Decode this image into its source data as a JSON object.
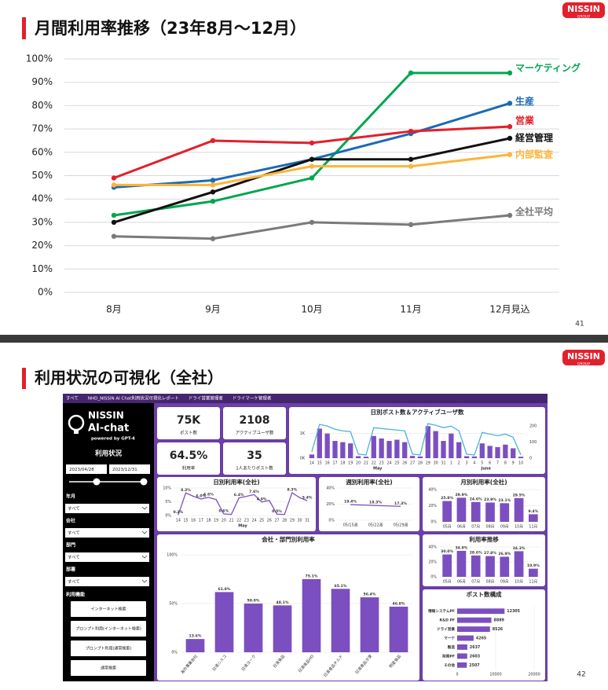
{
  "slide1": {
    "title": "月間利用率推移（23年8月～12月）",
    "logo": {
      "brand": "NISSIN",
      "sub": "GROUP"
    },
    "page": "41",
    "chart": {
      "type": "line",
      "categories": [
        "8月",
        "9月",
        "10月",
        "11月",
        "12月見込"
      ],
      "ylim": [
        0,
        100
      ],
      "yticks": [
        {
          "value": 0,
          "label": "0%"
        },
        {
          "value": 10,
          "label": "10%"
        },
        {
          "value": 20,
          "label": "20%"
        },
        {
          "value": 30,
          "label": "30%"
        },
        {
          "value": 40,
          "label": "40%"
        },
        {
          "value": 50,
          "label": "50%"
        },
        {
          "value": 60,
          "label": "60%"
        },
        {
          "value": 70,
          "label": "70%"
        },
        {
          "value": 80,
          "label": "80%"
        },
        {
          "value": 90,
          "label": "90%"
        },
        {
          "value": 100,
          "label": "100%"
        }
      ],
      "grid": true,
      "series": [
        {
          "name": "マーケティング",
          "color": "#00a650",
          "values": [
            33,
            39,
            49,
            94,
            94
          ]
        },
        {
          "name": "生産",
          "color": "#1b6ab4",
          "values": [
            45,
            48,
            57,
            68,
            81
          ]
        },
        {
          "name": "営業",
          "color": "#e2202b",
          "values": [
            49,
            65,
            64,
            69,
            71
          ]
        },
        {
          "name": "経営管理",
          "color": "#111111",
          "values": [
            30,
            43,
            57,
            57,
            66
          ]
        },
        {
          "name": "内部監査",
          "color": "#fbb53c",
          "values": [
            46,
            46,
            54,
            54,
            59
          ]
        },
        {
          "name": "全社平均",
          "color": "#7a7a7a",
          "values": [
            24,
            23,
            30,
            29,
            33
          ]
        }
      ]
    }
  },
  "slide2": {
    "title": "利用状況の可視化（全社）",
    "logo": {
      "brand": "NISSIN",
      "sub": "GROUP"
    },
    "page": "42",
    "dashboard": {
      "tabs": [
        "すべて",
        "NHD_NISSIN AI Chat利用状況可視化レポート",
        "ドライ営業管理者",
        "ドライマーケ管理者"
      ],
      "sidebar": {
        "brand": "NISSIN",
        "product": "AI-chat",
        "tagline": "powered by GPT-4",
        "heading": "利用状況",
        "date_from": "2023/04/28",
        "date_to": "2023/12/31",
        "filters": [
          {
            "label": "年月",
            "value": "すべて"
          },
          {
            "label": "会社",
            "value": "すべて"
          },
          {
            "label": "部門",
            "value": "すべて"
          },
          {
            "label": "部署",
            "value": "すべて"
          }
        ],
        "function_label": "利用機能",
        "buttons": [
          "インターネット検索",
          "プロンプト利用(インターネット検索)",
          "プロンプト利用(通常検索)",
          "通常検索"
        ]
      },
      "kpis": [
        {
          "value": "75K",
          "label": "ポスト数"
        },
        {
          "value": "2108",
          "label": "アクティブユーザ数"
        },
        {
          "value": "64.5%",
          "label": "利用率"
        },
        {
          "value": "35",
          "label": "1人あたりポスト数"
        }
      ],
      "charts": [
        {
          "type": "bar",
          "title": "日別ポスト数＆アクティブユーザ数",
          "categories": [
            "14",
            "15",
            "16",
            "17",
            "18",
            "19",
            "20",
            "21",
            "22",
            "23",
            "24",
            "25",
            "26",
            "27",
            "28",
            "29",
            "30",
            "31",
            "1",
            "2",
            "3",
            "4",
            "5",
            "6",
            "7",
            "8",
            "9",
            "10"
          ],
          "x_groups": [
            "May",
            "June"
          ],
          "ylim": [
            0,
            1500
          ],
          "yticks": [
            {
              "value": 0,
              "label": "0K"
            },
            {
              "value": 1000,
              "label": "1K"
            }
          ],
          "y2lim": [
            0,
            230
          ],
          "y2ticks": [
            0,
            100,
            200
          ],
          "series": [
            {
              "color": "#7b4fc0",
              "values": [
                150,
                1200,
                1000,
                700,
                650,
                600,
                80,
                60,
                900,
                800,
                700,
                750,
                650,
                90,
                70,
                1300,
                1100,
                700,
                1000,
                650,
                80,
                70,
                600,
                500,
                450,
                550,
                400,
                60
              ]
            },
            {
              "type": "line",
              "axis": "y2",
              "color": "#4bb4d8",
              "values": [
                40,
                210,
                200,
                180,
                170,
                165,
                25,
                20,
                190,
                185,
                180,
                175,
                170,
                25,
                20,
                215,
                205,
                190,
                200,
                170,
                25,
                20,
                160,
                150,
                140,
                150,
                130,
                20
              ]
            }
          ]
        },
        {
          "type": "line",
          "title": "日別利用率(全社)",
          "categories": [
            "14",
            "15",
            "16",
            "17",
            "18",
            "19",
            "20",
            "21",
            "22",
            "23",
            "24",
            "25",
            "26",
            "27",
            "28",
            "29",
            "30",
            "31"
          ],
          "x_groups": [
            "May"
          ],
          "ylim": [
            0,
            10
          ],
          "yticks": [
            {
              "value": 0,
              "label": "0%"
            },
            {
              "value": 5,
              "label": "5%"
            },
            {
              "value": 10,
              "label": "10%"
            }
          ],
          "color": "#7b4fc0",
          "values": [
            0.2,
            8.2,
            7.0,
            6.0,
            6.6,
            5.8,
            0.6,
            0.4,
            6.4,
            7.0,
            7.6,
            4.9,
            5.5,
            0.5,
            0.4,
            8.3,
            6.5,
            5.4
          ],
          "value_labels": [
            "0.2%",
            "8.2%",
            null,
            "6.0%",
            "6.6%",
            null,
            "0.6%",
            null,
            "6.4%",
            null,
            "7.6%",
            "4.9%",
            null,
            "0.5%",
            null,
            "8.3%",
            null,
            "5.4%"
          ]
        },
        {
          "type": "line",
          "title": "週別利用率(全社)",
          "categories": [
            "05/15週",
            "05/22週",
            "05/29週"
          ],
          "ylim": [
            0,
            40
          ],
          "yticks": [
            {
              "value": 0,
              "label": "0%"
            },
            {
              "value": 20,
              "label": "20%"
            },
            {
              "value": 40,
              "label": "40%"
            }
          ],
          "color": "#7b4fc0",
          "values": [
            19.4,
            18.3,
            17.3
          ],
          "value_labels": [
            "19.4%",
            "18.3%",
            "17.3%"
          ]
        },
        {
          "type": "bar",
          "title": "月別利用率(全社)",
          "categories": [
            "05月",
            "06月",
            "07月",
            "08月",
            "09月",
            "10月",
            "11月"
          ],
          "ylim": [
            0,
            40
          ],
          "yticks": [
            {
              "value": 0,
              "label": "0%"
            },
            {
              "value": 20,
              "label": "20%"
            },
            {
              "value": 40,
              "label": "40%"
            }
          ],
          "color": "#7b4fc0",
          "values": [
            25.8,
            29.9,
            24.6,
            23.9,
            23.1,
            29.5,
            9.4
          ],
          "value_labels": [
            "25.8%",
            "29.9%",
            "24.6%",
            "23.9%",
            "23.1%",
            "29.5%",
            "9.4%"
          ]
        },
        {
          "type": "bar",
          "title": "会社・部門別利用率",
          "categories": [
            "海外事業会社",
            "日清シスコ",
            "日清ヨーク",
            "日清食品",
            "日清食品HD",
            "日清食品チルド",
            "日清食品冷凍",
            "明星食品"
          ],
          "ylim": [
            0,
            100
          ],
          "yticks": [
            {
              "value": 0,
              "label": "0%"
            },
            {
              "value": 50,
              "label": "50%"
            },
            {
              "value": 100,
              "label": "100%"
            }
          ],
          "color": "#7b4fc0",
          "values": [
            13.6,
            61.8,
            50.0,
            48.1,
            75.1,
            65.1,
            56.4,
            46.8
          ],
          "value_labels": [
            "13.6%",
            "61.8%",
            "50.0%",
            "48.1%",
            "75.1%",
            "65.1%",
            "56.4%",
            "46.8%"
          ]
        },
        {
          "type": "bar",
          "title": "利用率推移",
          "categories": [
            "05月",
            "06月",
            "07月",
            "08月",
            "09月",
            "10月",
            "11月"
          ],
          "ylim": [
            0,
            40
          ],
          "yticks": [
            {
              "value": 0,
              "label": "0%"
            },
            {
              "value": 20,
              "label": "20%"
            },
            {
              "value": 40,
              "label": "40%"
            }
          ],
          "color": "#7b4fc0",
          "values": [
            30.0,
            34.8,
            28.6,
            27.8,
            26.9,
            34.3,
            10.9
          ],
          "value_labels": [
            "30.0%",
            "34.8%",
            "28.6%",
            "27.8%",
            "26.9%",
            "34.3%",
            "10.9%"
          ]
        },
        {
          "type": "hbar",
          "title": "ポスト数構成",
          "categories": [
            "情報システムPF",
            "R&D PF",
            "ドライ営業",
            "マーケ",
            "製造",
            "財務PF",
            "その他"
          ],
          "xlim": [
            0,
            20000
          ],
          "xticks": [
            0,
            10000,
            20000
          ],
          "color": "#7b4fc0",
          "values": [
            12305,
            8889,
            8526,
            4265,
            2637,
            2603,
            2507
          ]
        }
      ]
    }
  }
}
